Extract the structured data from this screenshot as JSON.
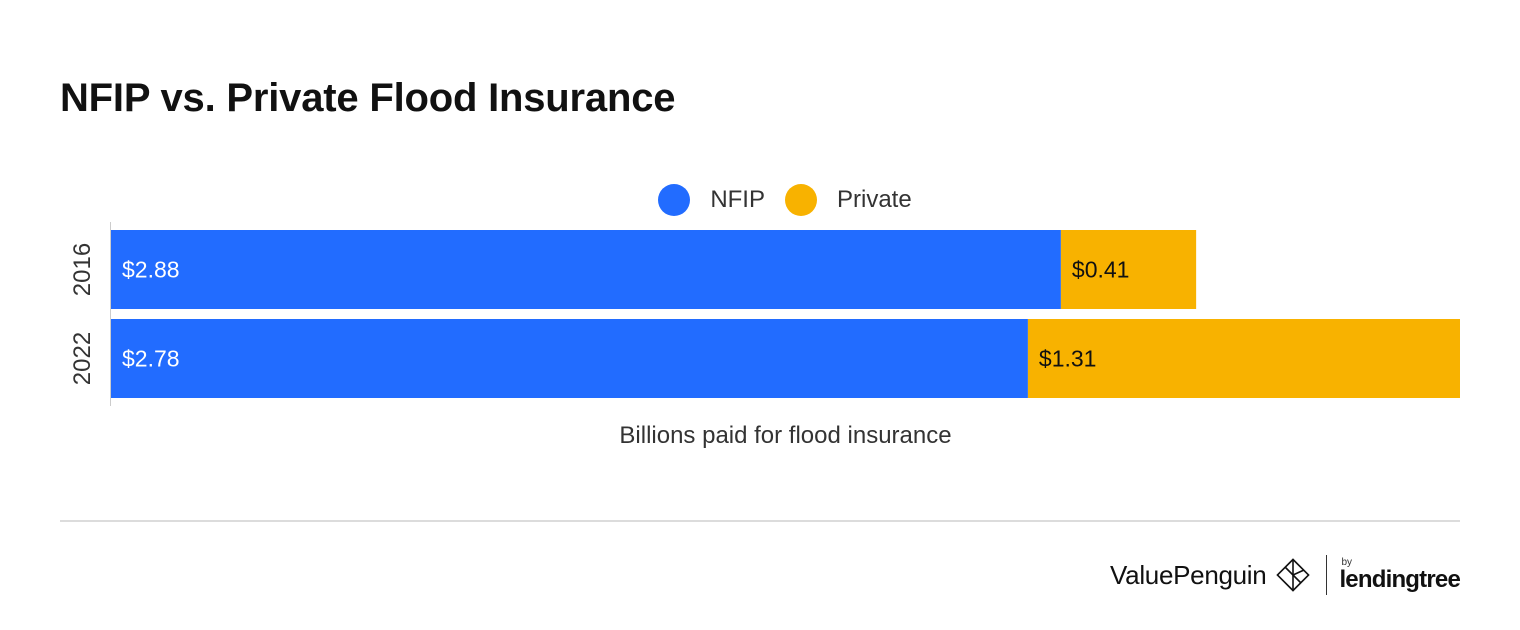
{
  "chart_data": {
    "type": "bar",
    "orientation": "horizontal",
    "stacked": true,
    "title": "NFIP vs. Private Flood Insurance",
    "xlabel": "Billions paid for flood insurance",
    "ylabel": "",
    "categories": [
      "2016",
      "2022"
    ],
    "series": [
      {
        "name": "NFIP",
        "color": "#226cff",
        "values": [
          2.88,
          2.78
        ],
        "labels": [
          "$2.88",
          "$2.78"
        ],
        "label_color": "#ffffff"
      },
      {
        "name": "Private",
        "color": "#f8b200",
        "values": [
          0.41,
          1.31
        ],
        "labels": [
          "$0.41",
          "$1.31"
        ],
        "label_color": "#111111"
      }
    ],
    "xlim": [
      0,
      4.09
    ],
    "grid": false,
    "legend_position": "top-center"
  },
  "footer": {
    "brand": "ValuePenguin",
    "by": "by",
    "partner": "lendingtree"
  },
  "colors": {
    "axis": "#cccccc",
    "divider": "#dcdcdc",
    "tick_text": "#333333"
  }
}
